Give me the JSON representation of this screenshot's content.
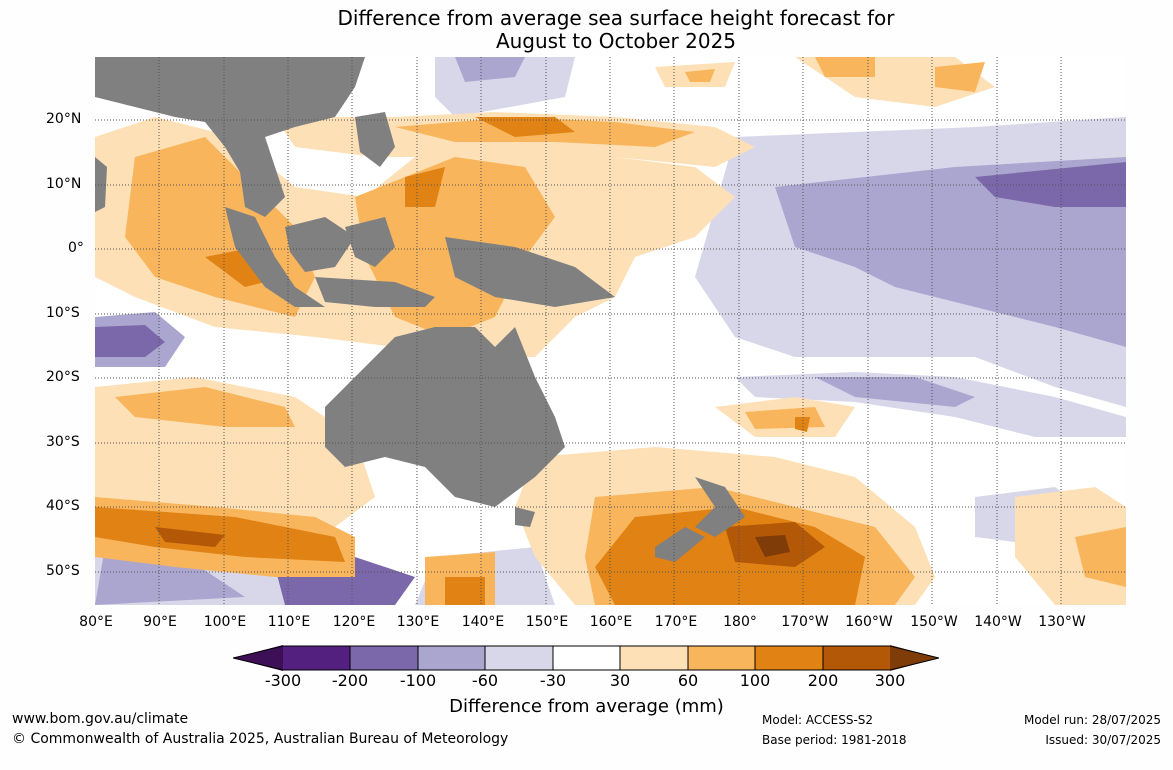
{
  "title": {
    "line1": "Difference from average sea surface height forecast for",
    "line2": "August to October 2025"
  },
  "latitude_labels": [
    "20°N",
    "10°N",
    "0°",
    "10°S",
    "20°S",
    "30°S",
    "40°S",
    "50°S"
  ],
  "longitude_labels": [
    "80°E",
    "90°E",
    "100°E",
    "110°E",
    "120°E",
    "130°E",
    "140°E",
    "150°E",
    "160°E",
    "170°E",
    "180°",
    "170°W",
    "160°W",
    "150°W",
    "140°W",
    "130°W"
  ],
  "colorbar": {
    "tick_labels": [
      "-300",
      "-200",
      "-100",
      "-60",
      "-30",
      "30",
      "60",
      "100",
      "200",
      "300"
    ],
    "colors": [
      "#3d0f57",
      "#542080",
      "#7b68aa",
      "#aba6cf",
      "#d8d7ea",
      "#ffffff",
      "#fde0b6",
      "#f8b55c",
      "#e08214",
      "#b35806",
      "#7f3b08"
    ],
    "label": "Difference from average (mm)"
  },
  "colors": {
    "land": "#808080",
    "gridline": "#555555"
  },
  "footer": {
    "website": "www.bom.gov.au/climate",
    "copyright": "© Commonwealth of Australia 2025, Australian Bureau of Meteorology",
    "model": "Model: ACCESS-S2",
    "base_period": "Base period: 1981-2018",
    "model_run": "Model run: 28/07/2025",
    "issued": "Issued: 30/07/2025"
  }
}
